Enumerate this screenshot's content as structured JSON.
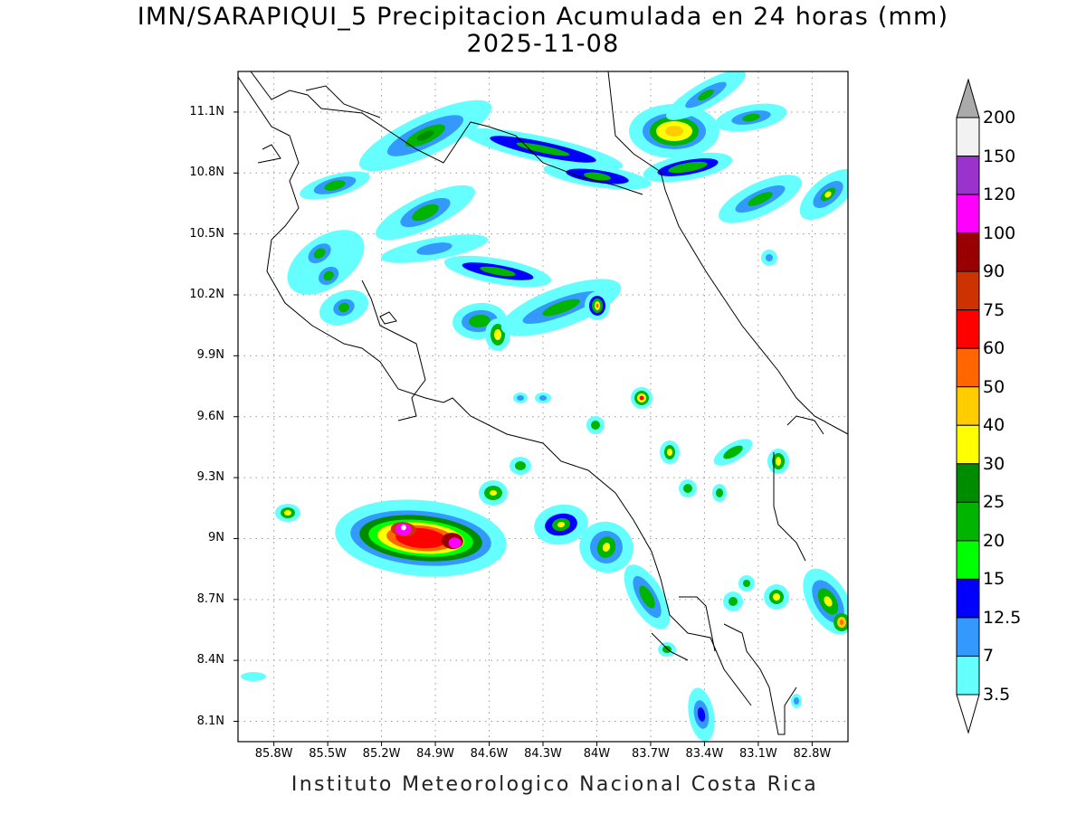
{
  "title": {
    "line1": "IMN/SARAPIQUI_5 Precipitacion Acumulada en 24 horas (mm)",
    "line2": "2025-11-08"
  },
  "axes": {
    "y_labels": [
      "11.1N",
      "10.8N",
      "10.5N",
      "10.2N",
      "9.9N",
      "9.6N",
      "9.3N",
      "9N",
      "8.7N",
      "8.4N",
      "8.1N"
    ],
    "x_labels": [
      "85.8W",
      "85.5W",
      "85.2W",
      "84.9W",
      "84.6W",
      "84.3W",
      "84W",
      "83.7W",
      "83.4W",
      "83.1W",
      "82.8W"
    ],
    "lat_range": [
      8.0,
      11.3
    ],
    "lon_range": [
      -86.0,
      -82.6
    ]
  },
  "colorbar": {
    "labels": [
      "200",
      "150",
      "120",
      "100",
      "90",
      "75",
      "60",
      "50",
      "40",
      "30",
      "25",
      "20",
      "15",
      "12.5",
      "7",
      "3.5"
    ],
    "colors": [
      "#f2f2f2",
      "#9933cc",
      "#ff00ff",
      "#990000",
      "#cc3300",
      "#ff0000",
      "#ff6600",
      "#ffcc00",
      "#ffff00",
      "#008c00",
      "#00b400",
      "#00ff00",
      "#0000ff",
      "#3399ff",
      "#66ffff"
    ],
    "over_color": "#aaaaaa"
  },
  "footer": "Instituto Meteorologico Nacional Costa Rica"
}
